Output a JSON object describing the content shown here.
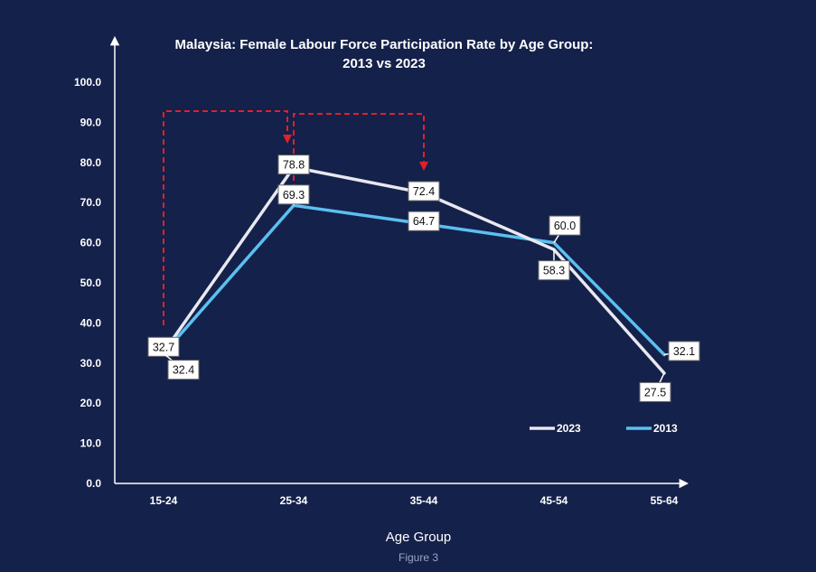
{
  "chart_data": {
    "type": "line",
    "title_line1": "Malaysia: Female Labour Force Participation Rate by Age Group:",
    "title_line2": "2013 vs 2023",
    "xlabel": "Age Group",
    "ylabel": "",
    "caption": "Figure 3",
    "categories": [
      "15-24",
      "25-34",
      "35-44",
      "45-54",
      "55-64"
    ],
    "ylim": [
      0,
      100
    ],
    "yticks": [
      "0.0",
      "10.0",
      "20.0",
      "30.0",
      "40.0",
      "50.0",
      "60.0",
      "70.0",
      "80.0",
      "90.0",
      "100.0"
    ],
    "series": [
      {
        "name": "2023",
        "values": [
          32.7,
          78.8,
          72.4,
          58.3,
          27.5
        ],
        "labels": [
          "32.7",
          "78.8",
          "72.4",
          "58.3",
          "27.5"
        ],
        "color": "#e8e8f0"
      },
      {
        "name": "2013",
        "values": [
          32.4,
          69.3,
          64.7,
          60.0,
          32.1
        ],
        "labels": [
          "32.4",
          "69.3",
          "64.7",
          "60.0",
          "32.1"
        ],
        "color": "#5bc0f0"
      }
    ],
    "annotation_color": "#e0202a",
    "legend_position": "bottom-right",
    "grid": false
  }
}
